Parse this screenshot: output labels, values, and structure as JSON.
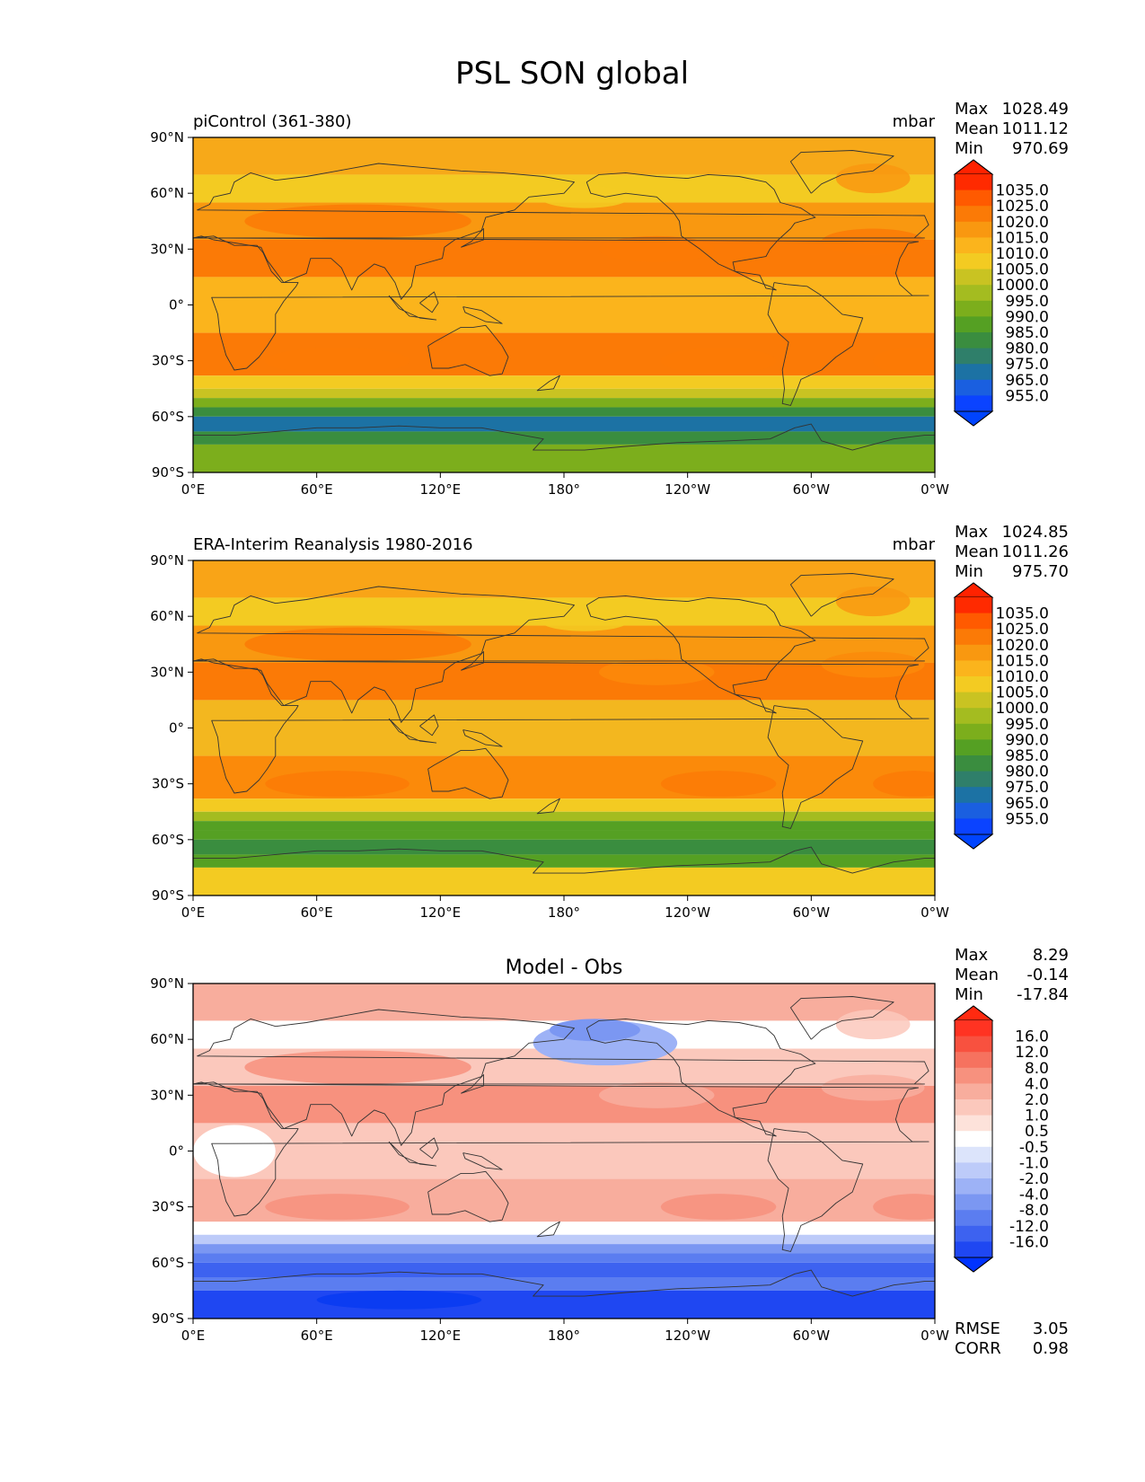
{
  "figure": {
    "title": "PSL SON global",
    "colors": {
      "frame": "#000000",
      "coast": "#333333"
    }
  },
  "axes": {
    "lat_ticks": [
      "90°N",
      "60°N",
      "30°N",
      "0°",
      "30°S",
      "60°S",
      "90°S"
    ],
    "lon_ticks": [
      "0°E",
      "60°E",
      "120°E",
      "180°",
      "120°W",
      "60°W",
      "0°W"
    ]
  },
  "panels": [
    {
      "id": "model",
      "left_title": "piControl (361-380)",
      "center_title": "",
      "units": "mbar",
      "stats": [
        {
          "label": "Max",
          "value": "1028.49"
        },
        {
          "label": "Mean",
          "value": "1011.12"
        },
        {
          "label": "Min",
          "value": "970.69"
        }
      ],
      "footer_stats": [],
      "colorbar": {
        "labels": [
          "1035.0",
          "1025.0",
          "1020.0",
          "1015.0",
          "1010.0",
          "1005.0",
          "1000.0",
          "995.0",
          "990.0",
          "985.0",
          "980.0",
          "975.0",
          "965.0",
          "955.0"
        ],
        "colors": [
          "#ff2a00",
          "#ff5a00",
          "#fb7a06",
          "#f99810",
          "#fbb41c",
          "#f3cb22",
          "#c9c322",
          "#a4bc20",
          "#7cae1c",
          "#55a023",
          "#3a8d3f",
          "#2f7f6a",
          "#1c72a4",
          "#1a5fe0",
          "#0b43ff"
        ],
        "over": "#ff2200",
        "under": "#0044ff"
      },
      "field": {
        "colors": {
          "polar_n": "#f7a919",
          "mid_n": "#f99810",
          "high_n": "#fb7a06",
          "trop": "#fbb41c",
          "sub_s": "#fb7a06",
          "band1": "#f3cb22",
          "band2": "#c9c322",
          "band3": "#7cae1c",
          "trough": "#3a8d3f",
          "deep": "#1c72a4",
          "ant": "#7cae1c"
        }
      }
    },
    {
      "id": "obs",
      "left_title": "ERA-Interim Reanalysis 1980-2016",
      "center_title": "",
      "units": "mbar",
      "stats": [
        {
          "label": "Max",
          "value": "1024.85"
        },
        {
          "label": "Mean",
          "value": "1011.26"
        },
        {
          "label": "Min",
          "value": "975.70"
        }
      ],
      "footer_stats": [],
      "colorbar": {
        "labels": [
          "1035.0",
          "1025.0",
          "1020.0",
          "1015.0",
          "1010.0",
          "1005.0",
          "1000.0",
          "995.0",
          "990.0",
          "985.0",
          "980.0",
          "975.0",
          "965.0",
          "955.0"
        ],
        "colors": [
          "#ff2a00",
          "#ff5a00",
          "#fb7a06",
          "#f99810",
          "#fbb41c",
          "#f3cb22",
          "#c9c322",
          "#a4bc20",
          "#7cae1c",
          "#55a023",
          "#3a8d3f",
          "#2f7f6a",
          "#1c72a4",
          "#1a5fe0",
          "#0b43ff"
        ],
        "over": "#ff2200",
        "under": "#0044ff"
      },
      "field": {
        "colors": {
          "polar_n": "#f9a417",
          "mid_n": "#f99810",
          "high_n": "#fb7a06",
          "trop": "#f3b71f",
          "sub_s": "#fb8a0a",
          "band1": "#f3cb22",
          "band2": "#a4bc20",
          "band3": "#55a023",
          "trough": "#55a023",
          "deep": "#3a8d3f",
          "ant": "#f3cb22"
        }
      }
    },
    {
      "id": "diff",
      "left_title": "",
      "center_title": "Model - Obs",
      "units": "",
      "stats": [
        {
          "label": "Max",
          "value": "8.29"
        },
        {
          "label": "Mean",
          "value": "-0.14"
        },
        {
          "label": "Min",
          "value": "-17.84"
        }
      ],
      "footer_stats": [
        {
          "label": "RMSE",
          "value": "3.05"
        },
        {
          "label": "CORR",
          "value": "0.98"
        }
      ],
      "colorbar": {
        "labels": [
          "16.0",
          "12.0",
          "8.0",
          "4.0",
          "2.0",
          "1.0",
          "0.5",
          "-0.5",
          "-1.0",
          "-2.0",
          "-4.0",
          "-8.0",
          "-12.0",
          "-16.0"
        ],
        "colors": [
          "#ff3322",
          "#f8513f",
          "#f6725f",
          "#f7917e",
          "#f8ad9d",
          "#fbc8bc",
          "#fde2da",
          "#ffffff",
          "#dce4fb",
          "#bdcbf9",
          "#9db2f6",
          "#7b97f2",
          "#5b7df0",
          "#3d62f0",
          "#1f47f2"
        ],
        "over": "#ff2a10",
        "under": "#0033ff"
      },
      "field": {
        "colors": {
          "polar_n": "#f8ad9d",
          "mid_n": "#fbc8bc",
          "high_n": "#f7917e",
          "trop": "#fbc8bc",
          "sub_s": "#f8ad9d",
          "band1": "#ffffff",
          "band2": "#bdcbf9",
          "band3": "#7b97f2",
          "trough": "#5b7df0",
          "deep": "#3d62f0",
          "ant": "#1f47f2"
        }
      }
    }
  ]
}
